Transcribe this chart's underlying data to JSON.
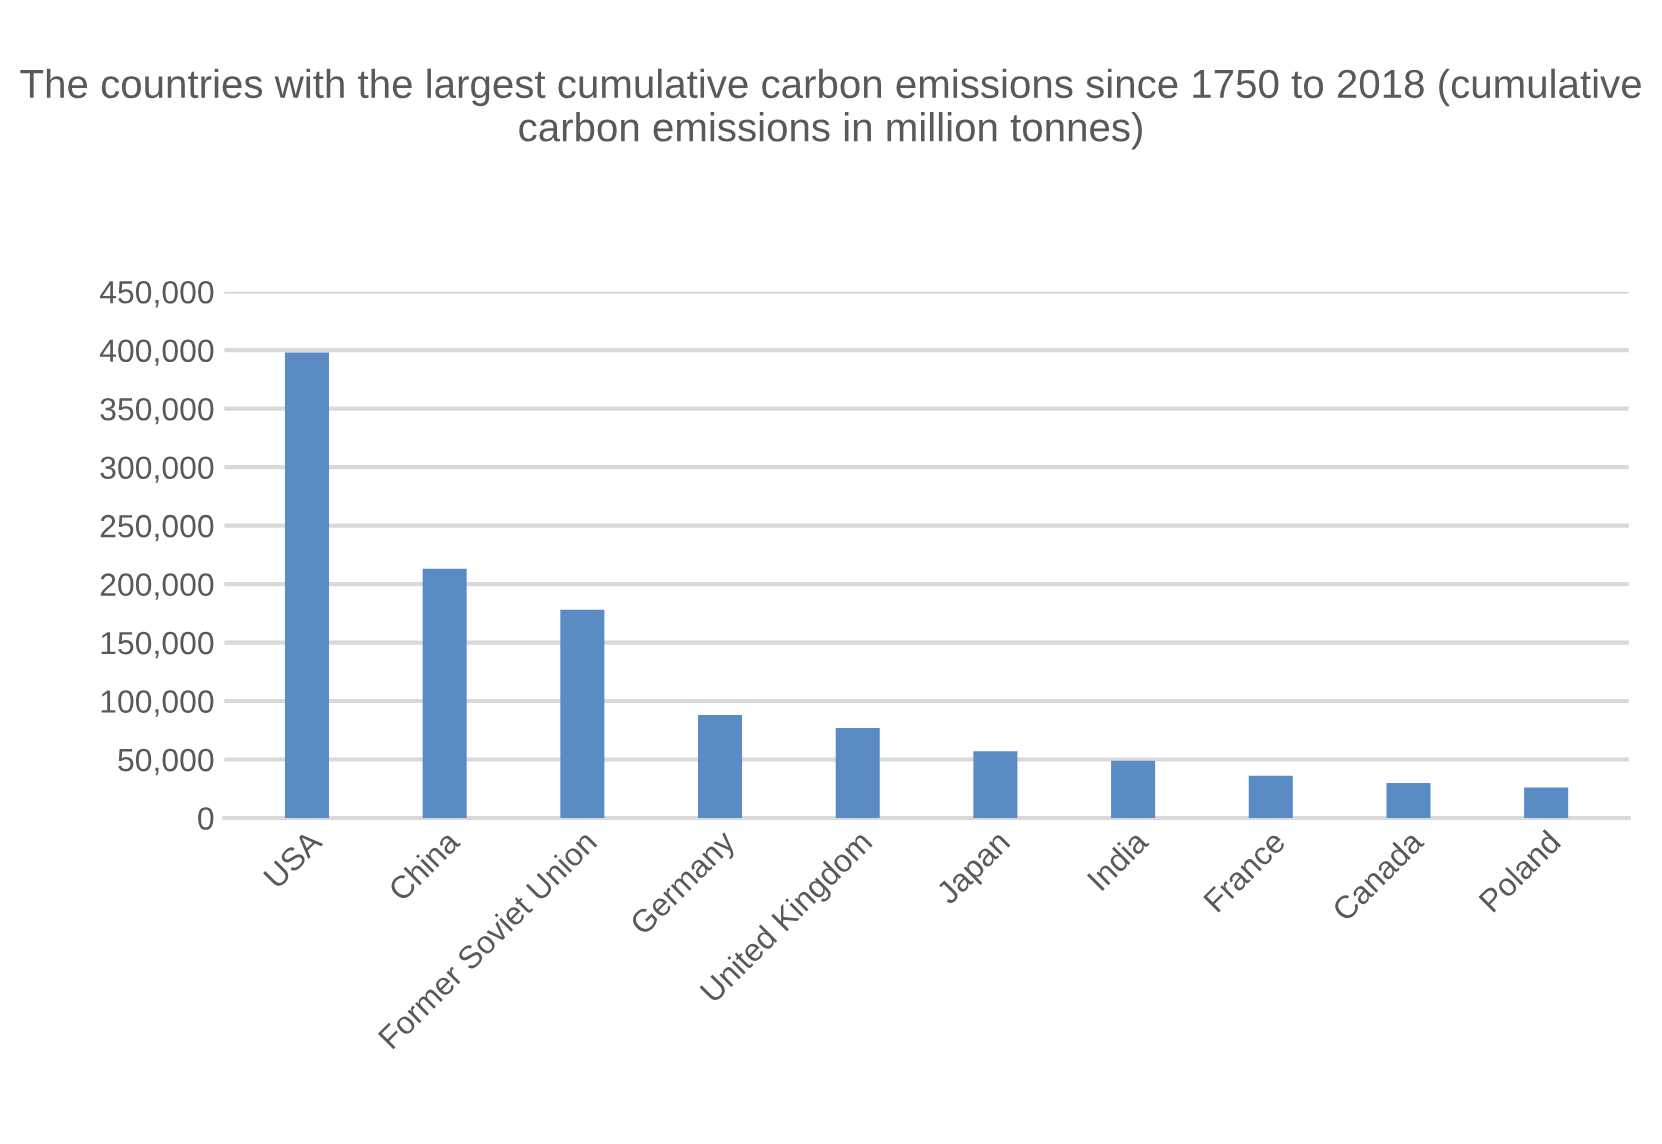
{
  "chart_data": {
    "type": "bar",
    "title": "The countries with the largest cumulative carbon emissions since 1750 to 2018 (cumulative carbon emissions in million tonnes)",
    "categories": [
      "USA",
      "China",
      "Former Soviet Union",
      "Germany",
      "United Kingdom",
      "Japan",
      "India",
      "France",
      "Canada",
      "Poland"
    ],
    "values": [
      398000,
      213000,
      178000,
      88000,
      77000,
      57000,
      49000,
      36000,
      30000,
      26000
    ],
    "color": "#5b8bc5",
    "ylim": [
      0,
      450000
    ],
    "yticks": [
      {
        "value": 0,
        "label": "0"
      },
      {
        "value": 50000,
        "label": "50,000"
      },
      {
        "value": 100000,
        "label": "100,000"
      },
      {
        "value": 150000,
        "label": "150,000"
      },
      {
        "value": 200000,
        "label": "200,000"
      },
      {
        "value": 250000,
        "label": "250,000"
      },
      {
        "value": 300000,
        "label": "300,000"
      },
      {
        "value": 350000,
        "label": "350,000"
      },
      {
        "value": 400000,
        "label": "400,000"
      },
      {
        "value": 450000,
        "label": "450,000"
      }
    ],
    "grid": "y"
  }
}
